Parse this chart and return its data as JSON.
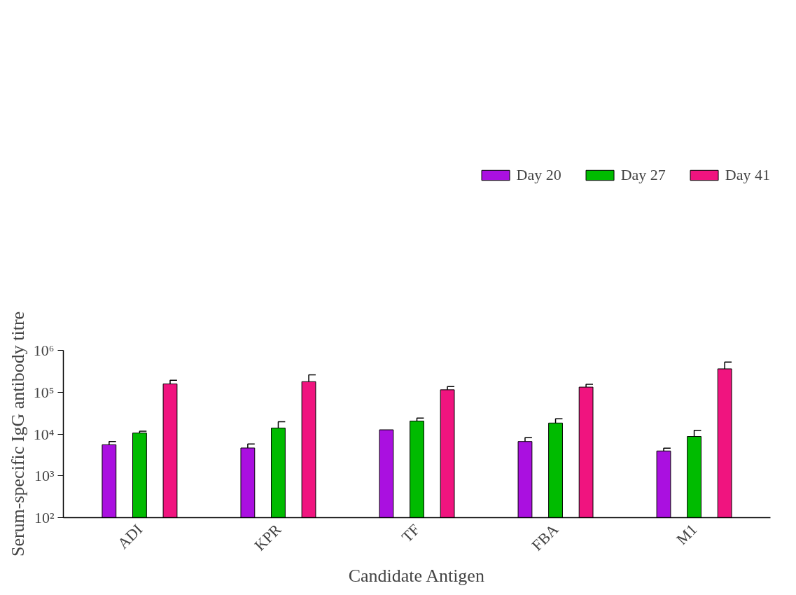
{
  "chart_data": {
    "type": "bar",
    "xlabel": "Candidate Antigen",
    "ylabel": "Serum-specific IgG antibody titre",
    "categories": [
      "ADI",
      "KPR",
      "TF",
      "FBA",
      "M1"
    ],
    "series": [
      {
        "name": "Day 20",
        "color": "#aa10e0",
        "values": [
          5540,
          4630,
          12600,
          6620,
          3930
        ],
        "errors": [
          [
            5540,
            6620
          ],
          [
            4630,
            5770
          ],
          null,
          [
            6620,
            8130
          ],
          [
            3930,
            4570
          ]
        ]
      },
      {
        "name": "Day 27",
        "color": "#00bb00",
        "values": [
          10570,
          13900,
          20400,
          18300,
          8720
        ],
        "errors": [
          [
            10570,
            11640
          ],
          [
            13900,
            19600
          ],
          [
            20400,
            24100
          ],
          [
            18300,
            23100
          ],
          [
            8720,
            12300
          ]
        ]
      },
      {
        "name": "Day 41",
        "color": "#f0147f",
        "values": [
          158000,
          179000,
          114000,
          132000,
          361000
        ],
        "errors": [
          [
            158000,
            192000
          ],
          [
            179000,
            260000
          ],
          [
            114000,
            136000
          ],
          [
            132000,
            154000
          ],
          [
            361000,
            524000
          ]
        ]
      }
    ],
    "log": "y",
    "ylim": [
      100,
      1000000
    ],
    "yticks": [
      {
        "value": 100,
        "label": "10²"
      },
      {
        "value": 1000,
        "label": "10³"
      },
      {
        "value": 10000,
        "label": "10⁴"
      },
      {
        "value": 100000,
        "label": "10⁵"
      },
      {
        "value": 1000000,
        "label": "10⁶"
      }
    ],
    "grid": false,
    "legend": "top right"
  }
}
